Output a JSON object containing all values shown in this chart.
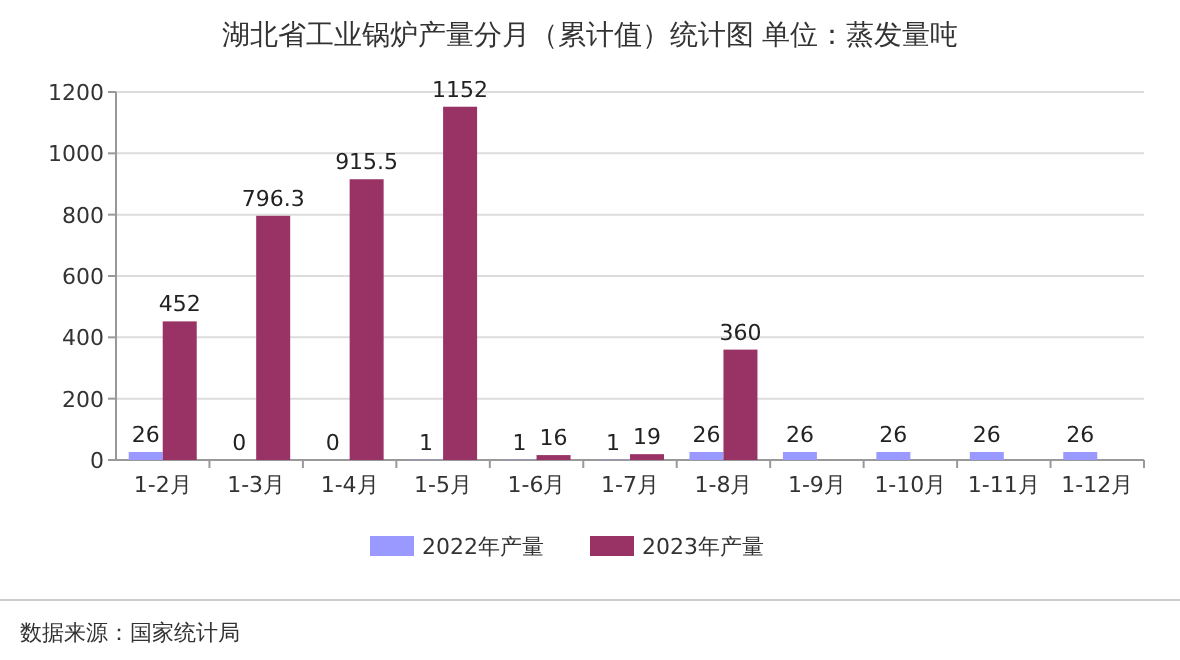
{
  "chart_data": {
    "type": "bar",
    "title": "湖北省工业锅炉产量分月（累计值）统计图 单位：蒸发量吨",
    "categories": [
      "1-2月",
      "1-3月",
      "1-4月",
      "1-5月",
      "1-6月",
      "1-7月",
      "1-8月",
      "1-9月",
      "1-10月",
      "1-11月",
      "1-12月"
    ],
    "series": [
      {
        "name": "2022年产量",
        "color": "#9999ff",
        "values": [
          26,
          0,
          0,
          1,
          1,
          1,
          26,
          26,
          26,
          26,
          26
        ]
      },
      {
        "name": "2023年产量",
        "color": "#993366",
        "values": [
          452,
          796.3,
          915.5,
          1152,
          16,
          19,
          360,
          null,
          null,
          null,
          null
        ]
      }
    ],
    "ylim": [
      0,
      1200
    ],
    "yticks": [
      0,
      200,
      400,
      600,
      800,
      1000,
      1200
    ],
    "grid": "y",
    "legend": "bottom",
    "data_labels": true,
    "annotations": [
      "数据来源：国家统计局"
    ]
  }
}
